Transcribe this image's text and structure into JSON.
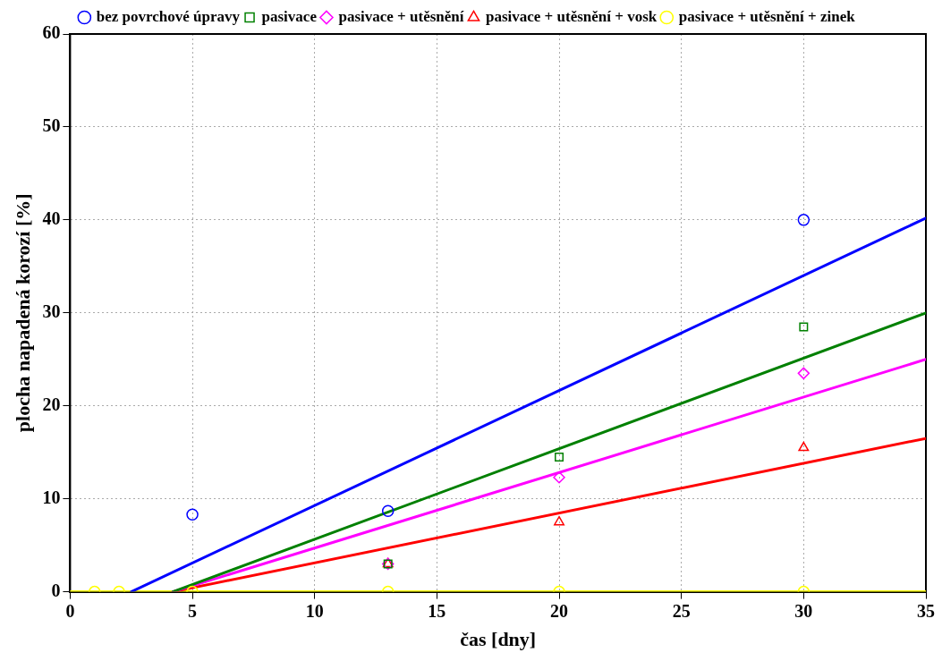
{
  "chart_data": {
    "type": "scatter",
    "xlabel": "čas [dny]",
    "ylabel": "plocha napadená korozí [%]",
    "xlim": [
      0,
      35
    ],
    "xticks": [
      0,
      5,
      10,
      15,
      20,
      25,
      30,
      35
    ],
    "ylim": [
      0,
      60
    ],
    "yticks": [
      0,
      10,
      20,
      30,
      40,
      50,
      60
    ],
    "grid": true,
    "legend": "top",
    "line_style": "solid",
    "series": [
      {
        "name": "bez povrchové úpravy",
        "color": "#0000ff",
        "marker": "circle",
        "x": [
          5,
          13,
          30
        ],
        "values": [
          8.3,
          8.7,
          40
        ]
      },
      {
        "name": "pasivace",
        "color": "#008000",
        "marker": "square",
        "x": [
          13,
          20,
          30
        ],
        "values": [
          3,
          14.5,
          28.5
        ]
      },
      {
        "name": "pasivace + utěsnění",
        "color": "#ff00ff",
        "marker": "diamond",
        "x": [
          13,
          20,
          30
        ],
        "values": [
          3,
          12.3,
          23.5
        ]
      },
      {
        "name": "pasivace + utěsnění + vosk",
        "color": "#ff0000",
        "marker": "triangle",
        "x": [
          13,
          20,
          30
        ],
        "values": [
          3,
          7.5,
          15.5
        ]
      },
      {
        "name": "pasivace + utěsnění + zinek",
        "color": "#ffff00",
        "marker": "circle",
        "x": [
          1,
          2,
          5,
          13,
          20,
          30
        ],
        "values": [
          0,
          0,
          0,
          0,
          0,
          0
        ]
      },
      {
        "type": "line",
        "color": "#0000ff",
        "x": [
          2.5,
          35
        ],
        "values": [
          0,
          40.2
        ]
      },
      {
        "type": "line",
        "color": "#008000",
        "x": [
          4.2,
          35
        ],
        "values": [
          0,
          30
        ]
      },
      {
        "type": "line",
        "color": "#ff00ff",
        "x": [
          4.2,
          35
        ],
        "values": [
          0,
          25
        ]
      },
      {
        "type": "line",
        "color": "#ff0000",
        "x": [
          4.2,
          35
        ],
        "values": [
          0,
          16.5
        ]
      },
      {
        "type": "line",
        "color": "#ffff00",
        "x": [
          0,
          35
        ],
        "values": [
          0,
          0
        ]
      }
    ]
  }
}
